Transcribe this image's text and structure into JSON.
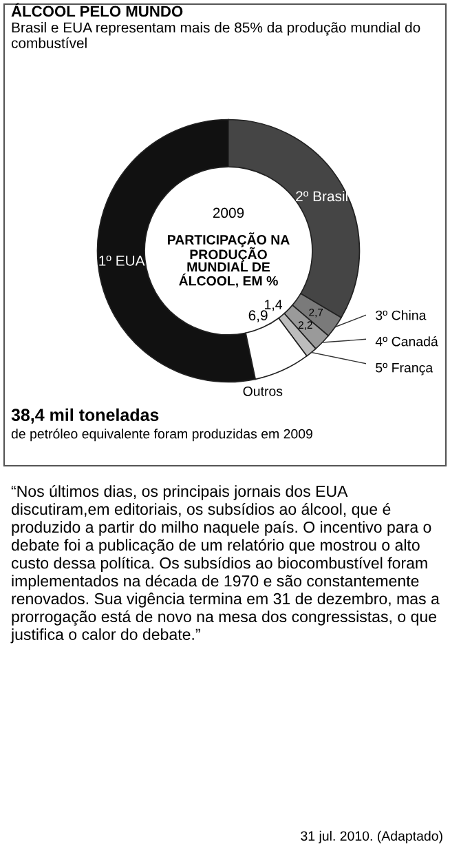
{
  "chart_data": {
    "type": "donut",
    "title": "ÁLCOOL PELO MUNDO",
    "subtitle": "Brasil e EUA representam mais de 85% da produção mundial do combustível",
    "categories": [
      "1º EUA",
      "2º Brasil",
      "3º China",
      "4º Canadá",
      "5º França",
      "Outros"
    ],
    "values": [
      53.3,
      33.5,
      2.7,
      2.2,
      1.4,
      6.9
    ],
    "value_labels": [
      null,
      null,
      "2,7",
      "2,2",
      "1,4",
      "6,9"
    ],
    "colors": [
      "#111111",
      "#454545",
      "#7a7a7a",
      "#9a9a9a",
      "#bdbdbd",
      "#ffffff"
    ],
    "annotations": [
      "2009",
      "PARTICIPAÇÃO NA\nPRODUÇÃO\nMUNDIAL DE\nÁLCOOL, EM %",
      "38,4 mil toneladas",
      "de petróleo equivalente foram produzidas em 2009",
      "“Nos últimos dias, os principais jornais dos EUA discutiram,em editoriais, os subsídios ao álcool, que é produzido a partir do milho naquele país. O incentivo para o debate foi a publicação de um relatório que mostrou o alto custo dessa política. Os subsídios ao biocombustível foram implementados na década de 1970 e são constantemente renovados. Sua vigência termina em 31 de dezembro, mas a prorrogação está de novo na mesa dos congressistas, o que justifica o calor do debate.”",
      "31 jul. 2010. (Adaptado)"
    ]
  }
}
